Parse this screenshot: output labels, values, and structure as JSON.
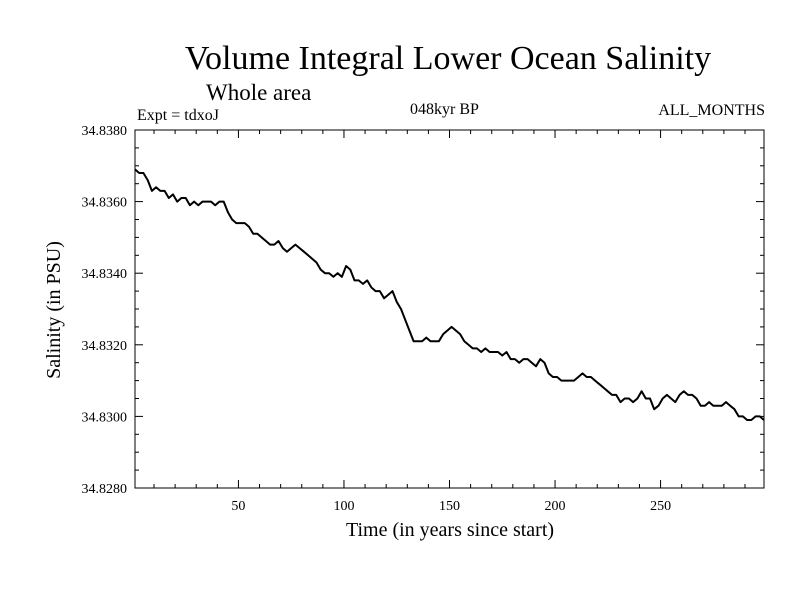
{
  "chart_data": {
    "type": "line",
    "title": "Volume Integral Lower Ocean Salinity",
    "subtitle": "Whole area",
    "expt_label": "Expt = tdxoJ",
    "period_label": "048kyr BP",
    "months_label": "ALL_MONTHS",
    "xlabel": "Time (in years since start)",
    "ylabel": "Salinity (in PSU)",
    "xlim": [
      1,
      299
    ],
    "ylim": [
      34.828,
      34.838
    ],
    "x_ticks": [
      50,
      100,
      150,
      200,
      250
    ],
    "y_ticks": [
      "34.8280",
      "34.8300",
      "34.8320",
      "34.8340",
      "34.8360",
      "34.8380"
    ],
    "grid": false,
    "series": [
      {
        "x": [
          1,
          3,
          5,
          7,
          9,
          11,
          13,
          15,
          17,
          19,
          21,
          23,
          25,
          27,
          29,
          31,
          33,
          35,
          37,
          39,
          41,
          43,
          45,
          47,
          49,
          51,
          53,
          55,
          57,
          59,
          61,
          63,
          65,
          67,
          69,
          71,
          73,
          75,
          77,
          79,
          81,
          83,
          85,
          87,
          89,
          91,
          93,
          95,
          97,
          99,
          101,
          103,
          105,
          107,
          109,
          111,
          113,
          115,
          117,
          119,
          121,
          123,
          125,
          127,
          129,
          131,
          133,
          135,
          137,
          139,
          141,
          143,
          145,
          147,
          149,
          151,
          153,
          155,
          157,
          159,
          161,
          163,
          165,
          167,
          169,
          171,
          173,
          175,
          177,
          179,
          181,
          183,
          185,
          187,
          189,
          191,
          193,
          195,
          197,
          199,
          201,
          203,
          205,
          207,
          209,
          211,
          213,
          215,
          217,
          219,
          221,
          223,
          225,
          227,
          229,
          231,
          233,
          235,
          237,
          239,
          241,
          243,
          245,
          247,
          249,
          251,
          253,
          255,
          257,
          259,
          261,
          263,
          265,
          267,
          269,
          271,
          273,
          275,
          277,
          279,
          281,
          283,
          285,
          287,
          289,
          291,
          293,
          295,
          297,
          299
        ],
        "y": [
          34.8369,
          34.8368,
          34.8368,
          34.8366,
          34.8363,
          34.8364,
          34.8363,
          34.8363,
          34.8361,
          34.8362,
          34.836,
          34.8361,
          34.8361,
          34.8359,
          34.836,
          34.8359,
          34.836,
          34.836,
          34.836,
          34.8359,
          34.836,
          34.836,
          34.8357,
          34.8355,
          34.8354,
          34.8354,
          34.8354,
          34.8353,
          34.8351,
          34.8351,
          34.835,
          34.8349,
          34.8348,
          34.8348,
          34.8349,
          34.8347,
          34.8346,
          34.8347,
          34.8348,
          34.8347,
          34.8346,
          34.8345,
          34.8344,
          34.8343,
          34.8341,
          34.834,
          34.834,
          34.8339,
          34.834,
          34.8339,
          34.8342,
          34.8341,
          34.8338,
          34.8338,
          34.8337,
          34.8338,
          34.8336,
          34.8335,
          34.8335,
          34.8333,
          34.8334,
          34.8335,
          34.8332,
          34.833,
          34.8327,
          34.8324,
          34.8321,
          34.8321,
          34.8321,
          34.8322,
          34.8321,
          34.8321,
          34.8321,
          34.8323,
          34.8324,
          34.8325,
          34.8324,
          34.8323,
          34.8321,
          34.832,
          34.8319,
          34.8319,
          34.8318,
          34.8319,
          34.8318,
          34.8318,
          34.8318,
          34.8317,
          34.8318,
          34.8316,
          34.8316,
          34.8315,
          34.8316,
          34.8316,
          34.8315,
          34.8314,
          34.8316,
          34.8315,
          34.8312,
          34.8311,
          34.8311,
          34.831,
          34.831,
          34.831,
          34.831,
          34.8311,
          34.8312,
          34.8311,
          34.8311,
          34.831,
          34.8309,
          34.8308,
          34.8307,
          34.8306,
          34.8306,
          34.8304,
          34.8305,
          34.8305,
          34.8304,
          34.8305,
          34.8307,
          34.8305,
          34.8305,
          34.8302,
          34.8303,
          34.8305,
          34.8306,
          34.8305,
          34.8304,
          34.8306,
          34.8307,
          34.8306,
          34.8306,
          34.8305,
          34.8303,
          34.8303,
          34.8304,
          34.8303,
          34.8303,
          34.8303,
          34.8304,
          34.8303,
          34.8302,
          34.83,
          34.83,
          34.8299,
          34.8299,
          34.83,
          34.83,
          34.8299
        ]
      }
    ]
  }
}
